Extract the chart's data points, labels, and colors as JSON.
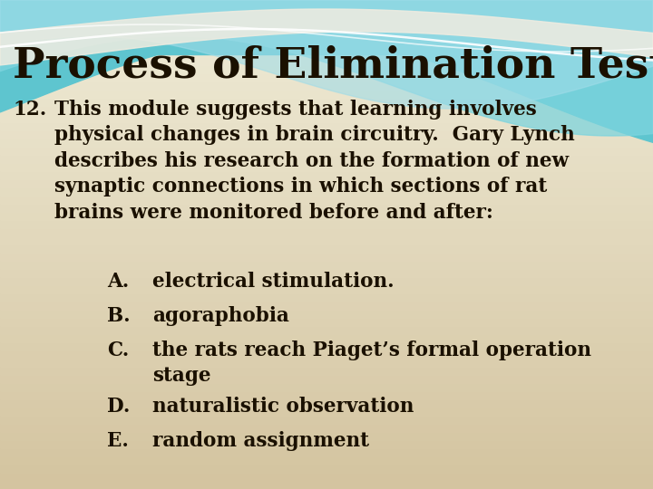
{
  "title": "Process of Elimination Test",
  "title_color": "#1a1000",
  "title_fontsize": 34,
  "bg_color": "#e8dfc0",
  "question_number": "12.",
  "question_text": "This module suggests that learning involves\nphysical changes in brain circuitry.  Gary Lynch\ndescribes his research on the formation of new\nsynaptic connections in which sections of rat\nbrains were monitored before and after:",
  "options": [
    {
      "label": "A.",
      "text": "electrical stimulation."
    },
    {
      "label": "B.",
      "text": "agoraphobia"
    },
    {
      "label": "C.",
      "text": "the rats reach Piaget’s formal operation\nstage"
    },
    {
      "label": "D.",
      "text": "naturalistic observation"
    },
    {
      "label": "E.",
      "text": "random assignment"
    }
  ],
  "text_color": "#1a1000",
  "font_size_question": 15.5,
  "font_size_options": 15.5,
  "font_size_title": 34
}
